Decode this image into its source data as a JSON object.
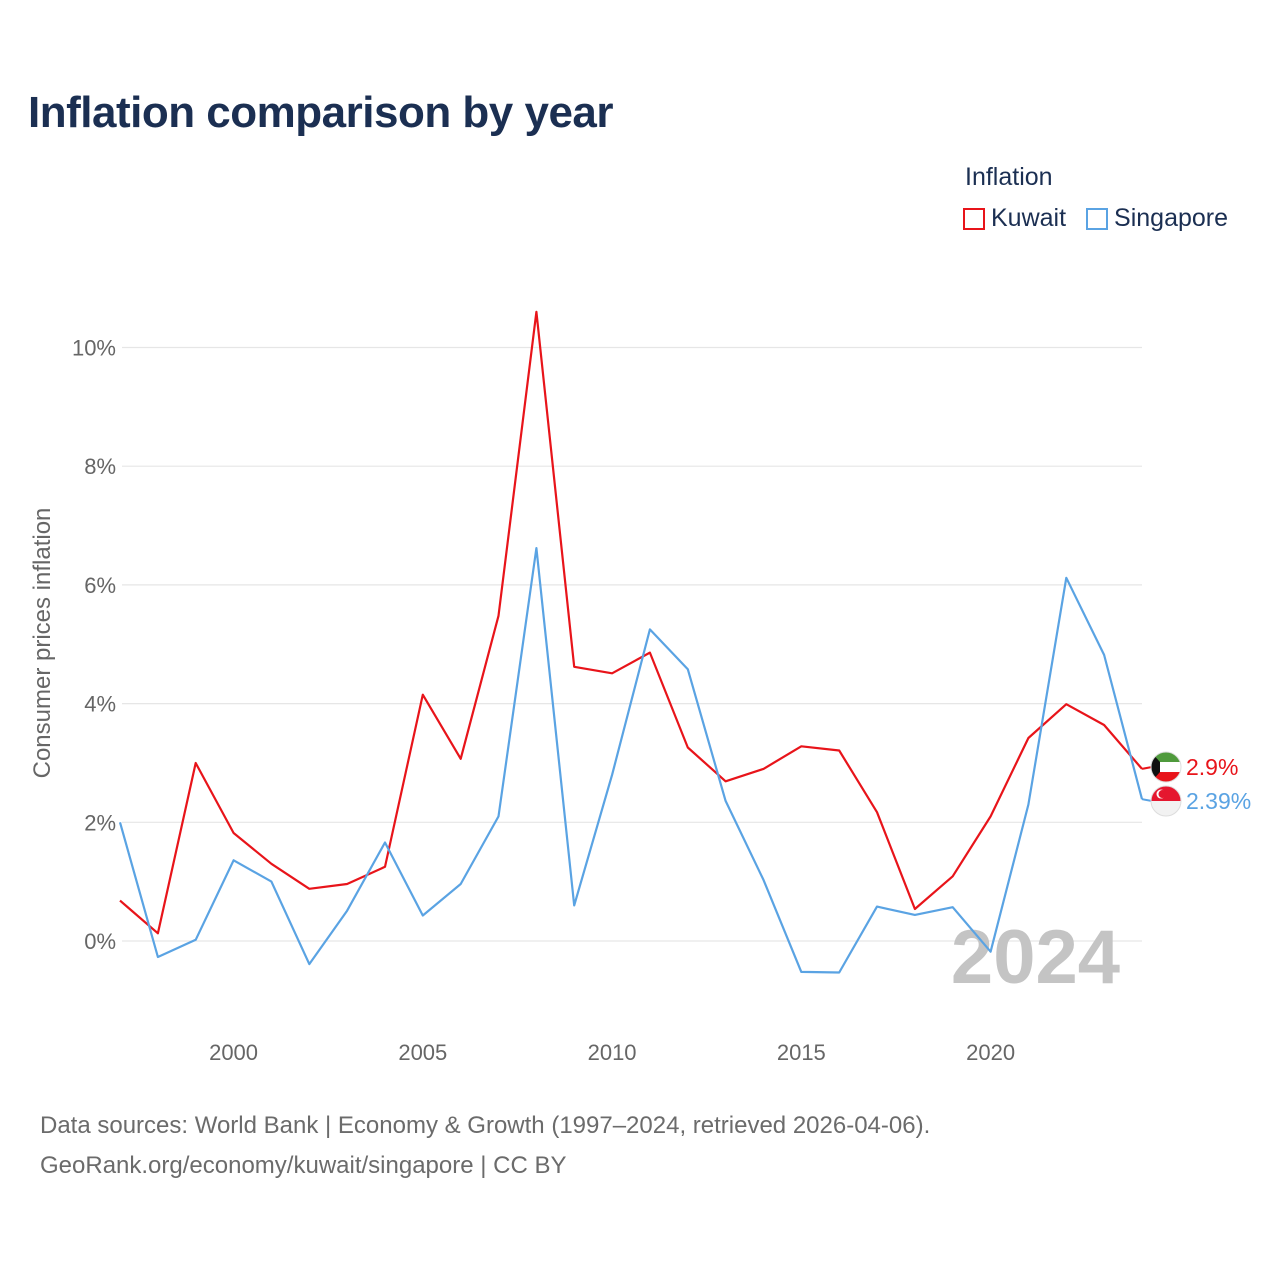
{
  "title": "Inflation comparison by year",
  "legend": {
    "title": "Inflation",
    "items": [
      {
        "label": "Kuwait",
        "color": "#e8141a"
      },
      {
        "label": "Singapore",
        "color": "#5aa3e3"
      }
    ]
  },
  "sources": {
    "line1": "Data sources: World Bank | Economy & Growth (1997–2024, retrieved 2026-04-06).",
    "line2": "GeoRank.org/economy/kuwait/singapore | CC BY"
  },
  "chart_data": {
    "type": "line",
    "title": "Inflation comparison by year",
    "xlabel": "",
    "ylabel": "Consumer prices inflation",
    "x": [
      1997,
      1998,
      1999,
      2000,
      2001,
      2002,
      2003,
      2004,
      2005,
      2006,
      2007,
      2008,
      2009,
      2010,
      2011,
      2012,
      2013,
      2014,
      2015,
      2016,
      2017,
      2018,
      2019,
      2020,
      2021,
      2022,
      2023,
      2024
    ],
    "xlim": [
      1997,
      2024
    ],
    "ylim": [
      -1.2,
      10.6
    ],
    "x_ticks": [
      2000,
      2005,
      2010,
      2015,
      2020
    ],
    "y_ticks": [
      {
        "value": 0,
        "label": "0%"
      },
      {
        "value": 2,
        "label": "2%"
      },
      {
        "value": 4,
        "label": "4%"
      },
      {
        "value": 6,
        "label": "6%"
      },
      {
        "value": 8,
        "label": "8%"
      },
      {
        "value": 10,
        "label": "10%"
      }
    ],
    "grid": true,
    "watermark": "2024",
    "series": [
      {
        "name": "Kuwait",
        "color": "#e8141a",
        "end_label": "2.9%",
        "flag": "kuwait-flag",
        "values": [
          0.68,
          0.13,
          3.0,
          1.82,
          1.3,
          0.88,
          0.96,
          1.25,
          4.15,
          3.07,
          5.48,
          10.6,
          4.62,
          4.51,
          4.86,
          3.26,
          2.69,
          2.9,
          3.28,
          3.21,
          2.17,
          0.54,
          1.09,
          2.1,
          3.42,
          3.99,
          3.64,
          2.9
        ]
      },
      {
        "name": "Singapore",
        "color": "#5aa3e3",
        "end_label": "2.39%",
        "flag": "singapore-flag",
        "values": [
          2.0,
          -0.27,
          0.02,
          1.36,
          1.0,
          -0.39,
          0.51,
          1.66,
          0.43,
          0.96,
          2.1,
          6.62,
          0.6,
          2.8,
          5.25,
          4.58,
          2.36,
          1.03,
          -0.52,
          -0.53,
          0.58,
          0.44,
          0.57,
          -0.18,
          2.3,
          6.12,
          4.82,
          2.39
        ]
      }
    ]
  }
}
